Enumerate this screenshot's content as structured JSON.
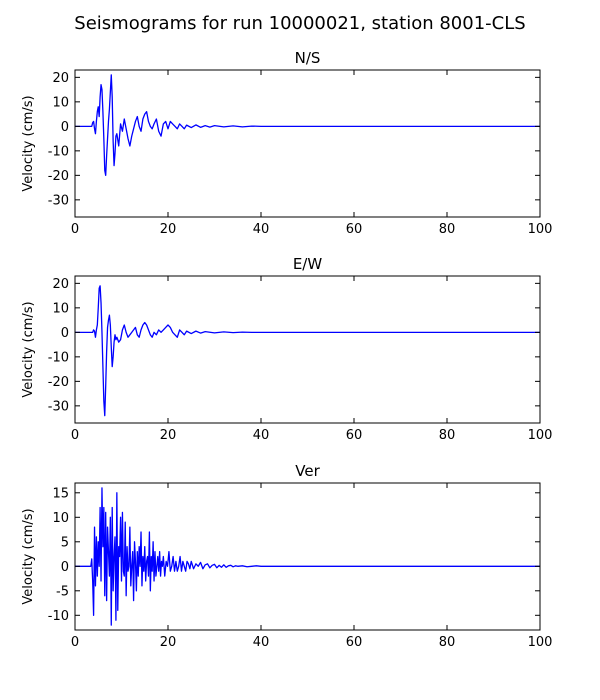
{
  "figure": {
    "title": "Seismograms for run 10000021, station 8001-CLS"
  },
  "colors": {
    "trace": "#0000ff",
    "axes": "#000000",
    "background": "#ffffff"
  },
  "chart_data": [
    {
      "type": "line",
      "title": "N/S",
      "xlabel": "",
      "ylabel": "Velocity (cm/s)",
      "xlim": [
        0,
        100
      ],
      "ylim": [
        -37,
        23
      ],
      "xticks": [
        0,
        20,
        40,
        60,
        80,
        100
      ],
      "yticks": [
        20,
        10,
        0,
        -10,
        -20,
        -30
      ],
      "grid": false,
      "legend": "none",
      "series": [
        {
          "x": [
            0,
            3.6,
            3.8,
            4.0,
            4.2,
            4.4,
            4.6,
            4.8,
            5.0,
            5.2,
            5.4,
            5.6,
            5.8,
            6.0,
            6.2,
            6.4,
            6.6,
            6.8,
            7.0,
            7.2,
            7.4,
            7.6,
            7.8,
            8.0,
            8.2,
            8.4,
            8.6,
            8.8,
            9.0,
            9.4,
            9.8,
            10.2,
            10.6,
            11.0,
            11.4,
            11.8,
            12.2,
            12.6,
            13.0,
            13.4,
            13.8,
            14.2,
            14.6,
            15.0,
            15.4,
            15.8,
            16.2,
            16.6,
            17.0,
            17.5,
            18.0,
            18.5,
            19.0,
            19.5,
            20.0,
            20.5,
            21.0,
            21.5,
            22.0,
            22.5,
            23.0,
            23.5,
            24.0,
            25.0,
            26.0,
            27.0,
            28.0,
            29.0,
            30.0,
            32.0,
            34.0,
            36.0,
            38.0,
            40.0,
            50.0,
            60.0,
            70.0,
            80.0,
            90.0,
            100.0
          ],
          "y": [
            0,
            0,
            1.5,
            2,
            -1,
            -3,
            2,
            6,
            8,
            4,
            12,
            17,
            15,
            6,
            -5,
            -18,
            -20,
            -12,
            -5,
            2,
            7,
            14,
            21,
            12,
            -6,
            -16,
            -11,
            -4,
            -3,
            -8,
            1,
            -2,
            3,
            -1,
            -5,
            -8,
            -4,
            -1,
            2,
            4,
            0,
            -2,
            3,
            5,
            6,
            2,
            0,
            -1,
            1,
            3,
            -2,
            -4,
            1,
            2,
            -1,
            2,
            1,
            0,
            -1,
            1,
            0,
            -1,
            0.5,
            -0.5,
            0.6,
            -0.4,
            0.3,
            -0.3,
            0.3,
            -0.2,
            0.2,
            -0.2,
            0.1,
            0,
            0,
            0,
            0,
            0,
            0,
            0
          ]
        }
      ]
    },
    {
      "type": "line",
      "title": "E/W",
      "xlabel": "",
      "ylabel": "Velocity (cm/s)",
      "xlim": [
        0,
        100
      ],
      "ylim": [
        -37,
        23
      ],
      "xticks": [
        0,
        20,
        40,
        60,
        80,
        100
      ],
      "yticks": [
        20,
        10,
        0,
        -10,
        -20,
        -30
      ],
      "grid": false,
      "legend": "none",
      "series": [
        {
          "x": [
            0,
            3.8,
            4.0,
            4.2,
            4.4,
            4.6,
            4.8,
            5.0,
            5.2,
            5.4,
            5.6,
            5.8,
            6.0,
            6.2,
            6.4,
            6.6,
            6.8,
            7.0,
            7.2,
            7.4,
            7.6,
            7.8,
            8.0,
            8.2,
            8.4,
            8.6,
            8.8,
            9.0,
            9.4,
            9.8,
            10.2,
            10.6,
            11.0,
            11.4,
            11.8,
            12.2,
            12.6,
            13.0,
            13.4,
            13.8,
            14.2,
            14.6,
            15.0,
            15.4,
            15.8,
            16.2,
            16.6,
            17.0,
            17.5,
            18.0,
            18.5,
            19.0,
            19.5,
            20.0,
            20.5,
            21.0,
            21.5,
            22.0,
            22.5,
            23.0,
            23.5,
            24.0,
            25.0,
            26.0,
            27.0,
            28.0,
            30.0,
            32.0,
            34.0,
            36.0,
            38.0,
            40.0,
            50.0,
            60.0,
            70.0,
            80.0,
            90.0,
            100.0
          ],
          "y": [
            0,
            0,
            1,
            0.5,
            -2,
            1,
            3,
            10,
            18,
            19,
            12,
            0,
            -14,
            -28,
            -34,
            -22,
            -8,
            2,
            5,
            7,
            3,
            -6,
            -14,
            -10,
            -4,
            -1,
            -3,
            -2,
            -4,
            -3,
            1,
            3,
            0,
            -2,
            -1,
            0,
            1,
            2,
            -1,
            -2,
            1,
            3,
            4,
            3,
            1,
            -1,
            -2,
            0,
            -1,
            1,
            0,
            1,
            2,
            3,
            2,
            0,
            -1,
            -2,
            1,
            0,
            -1,
            0.5,
            -0.5,
            0.5,
            -0.3,
            0.3,
            -0.2,
            0.2,
            -0.1,
            0.1,
            0,
            0,
            0,
            0,
            0,
            0,
            0,
            0
          ]
        }
      ]
    },
    {
      "type": "line",
      "title": "Ver",
      "xlabel": "",
      "ylabel": "Velocity (cm/s)",
      "xlim": [
        0,
        100
      ],
      "ylim": [
        -13,
        17
      ],
      "xticks": [
        0,
        20,
        40,
        60,
        80,
        100
      ],
      "yticks": [
        15,
        10,
        5,
        0,
        -5,
        -10
      ],
      "grid": false,
      "legend": "none",
      "series": [
        {
          "x": [
            0,
            3.4,
            3.6,
            3.8,
            4.0,
            4.2,
            4.4,
            4.6,
            4.8,
            5.0,
            5.2,
            5.4,
            5.6,
            5.8,
            6.0,
            6.2,
            6.4,
            6.6,
            6.8,
            7.0,
            7.2,
            7.4,
            7.6,
            7.8,
            8.0,
            8.2,
            8.4,
            8.6,
            8.8,
            9.0,
            9.2,
            9.4,
            9.6,
            9.8,
            10.0,
            10.2,
            10.4,
            10.6,
            10.8,
            11.0,
            11.2,
            11.4,
            11.6,
            11.8,
            12.0,
            12.2,
            12.4,
            12.6,
            12.8,
            13.0,
            13.2,
            13.4,
            13.6,
            13.8,
            14.0,
            14.2,
            14.4,
            14.6,
            14.8,
            15.0,
            15.2,
            15.4,
            15.6,
            15.8,
            16.0,
            16.2,
            16.4,
            16.6,
            16.8,
            17.0,
            17.2,
            17.4,
            17.6,
            17.8,
            18.0,
            18.2,
            18.4,
            18.6,
            18.8,
            19.0,
            19.3,
            19.6,
            19.9,
            20.2,
            20.5,
            20.8,
            21.1,
            21.4,
            21.7,
            22.0,
            22.3,
            22.6,
            22.9,
            23.2,
            23.5,
            23.8,
            24.1,
            24.4,
            24.7,
            25.0,
            25.5,
            26.0,
            26.5,
            27.0,
            27.5,
            28.0,
            28.5,
            29.0,
            29.5,
            30.0,
            30.5,
            31.0,
            31.5,
            32.0,
            32.5,
            33.0,
            33.5,
            34.0,
            34.5,
            35.0,
            36.0,
            37.0,
            38.0,
            39.0,
            40.0,
            42.0,
            44.0,
            46.0,
            48.0,
            50.0,
            60.0,
            70.0,
            80.0,
            90.0,
            100.0
          ],
          "y": [
            0,
            0,
            1.5,
            -3,
            -10,
            8,
            -4,
            6,
            -2,
            5,
            0,
            12,
            -3,
            16,
            4,
            12,
            -6,
            11,
            -7,
            8,
            3,
            -2,
            10,
            -12,
            12,
            -5,
            2,
            6,
            -11,
            15,
            -9,
            4,
            2,
            10,
            -3,
            11,
            -1,
            -2,
            9,
            -6,
            4,
            -1,
            0,
            8,
            -4,
            0,
            3,
            -7,
            5,
            1,
            -5,
            3,
            -2,
            4,
            0,
            7,
            -4,
            2,
            -1,
            4,
            -3,
            1,
            2,
            -2,
            7,
            -5,
            2,
            -1,
            5,
            -3,
            3,
            -2,
            0,
            2,
            -1,
            3,
            -2,
            1,
            0,
            2,
            -2,
            1,
            0,
            3,
            -1,
            0,
            2,
            -1,
            1,
            -1,
            0,
            2,
            -1,
            1,
            0,
            -1,
            1,
            0.5,
            -0.5,
            1,
            -0.5,
            0.5,
            0,
            0.8,
            -0.5,
            0.3,
            0.5,
            -0.3,
            0.2,
            0.4,
            -0.3,
            0.2,
            -0.2,
            0.3,
            -0.2,
            0.1,
            0.2,
            -0.1,
            0.1,
            0,
            0.1,
            -0.1,
            0,
            0.1,
            0,
            0,
            0,
            0,
            0,
            0,
            0,
            0,
            0,
            0,
            0
          ]
        }
      ]
    }
  ]
}
